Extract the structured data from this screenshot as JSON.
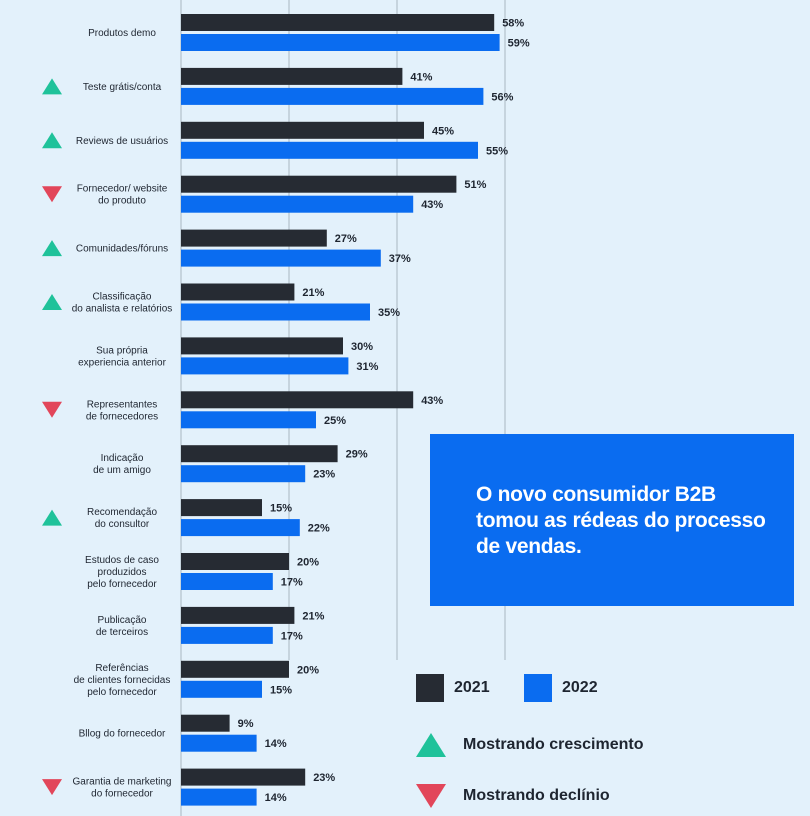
{
  "chart_data": {
    "type": "bar",
    "orientation": "horizontal",
    "categories": [
      [
        "Produtos demo"
      ],
      [
        "Teste grátis/conta"
      ],
      [
        "Reviews de usuários"
      ],
      [
        "Fornecedor/ website",
        "do produto"
      ],
      [
        "Comunidades/fóruns"
      ],
      [
        "Classificação",
        "do analista e relatórios"
      ],
      [
        "Sua própria",
        "experiencia anterior"
      ],
      [
        "Representantes",
        "de fornecedores"
      ],
      [
        "Indicação",
        "de um amigo"
      ],
      [
        "Recomendação",
        "do consultor"
      ],
      [
        "Estudos de caso",
        "produzidos",
        "pelo fornecedor"
      ],
      [
        "Publicação",
        "de terceiros"
      ],
      [
        "Referências",
        "de clientes fornecidas",
        "pelo fornecedor"
      ],
      [
        "Bllog do fornecedor"
      ],
      [
        "Garantia de marketing",
        "do fornecedor"
      ]
    ],
    "trend": [
      "none",
      "up",
      "up",
      "down",
      "up",
      "up",
      "none",
      "down",
      "none",
      "up",
      "none",
      "none",
      "none",
      "none",
      "down"
    ],
    "series": [
      {
        "name": "2021",
        "color": "#262b33",
        "values": [
          58,
          41,
          45,
          51,
          27,
          21,
          30,
          43,
          29,
          15,
          20,
          21,
          20,
          9,
          23
        ]
      },
      {
        "name": "2022",
        "color": "#0a6cf0",
        "values": [
          59,
          56,
          55,
          43,
          37,
          35,
          31,
          25,
          23,
          22,
          17,
          17,
          15,
          14,
          14
        ]
      }
    ],
    "value_suffix": "%",
    "xlim": [
      0,
      60
    ],
    "grid": true
  },
  "callout": {
    "text": "O novo consumidor B2B tomou as rédeas do processo de vendas."
  },
  "legend": {
    "series_2021": "2021",
    "series_2022": "2022",
    "growth": "Mostrando crescimento",
    "decline": "Mostrando declínio"
  },
  "colors": {
    "up": "#1fc29a",
    "down": "#e2465a",
    "grid": "#aab6c2"
  }
}
